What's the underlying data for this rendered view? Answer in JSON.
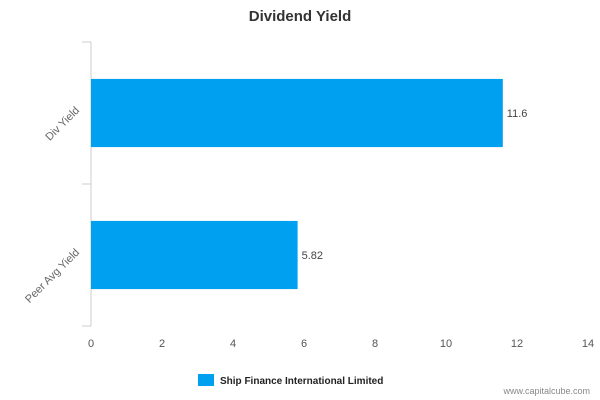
{
  "chart_data": {
    "type": "bar",
    "orientation": "horizontal",
    "title": "Dividend Yield",
    "categories": [
      "Div Yield",
      "Peer Avg Yield"
    ],
    "series": [
      {
        "name": "Ship Finance International Limited",
        "values": [
          11.6,
          5.82
        ]
      }
    ],
    "data_labels": [
      "11.6",
      "5.82"
    ],
    "xlim": [
      0,
      14
    ],
    "x_ticks": [
      0,
      2,
      4,
      6,
      8,
      10,
      12,
      14
    ],
    "grid": false,
    "legend_position": "bottom",
    "bar_color": "#00a0f0"
  },
  "watermark": "www.capitalcube.com"
}
